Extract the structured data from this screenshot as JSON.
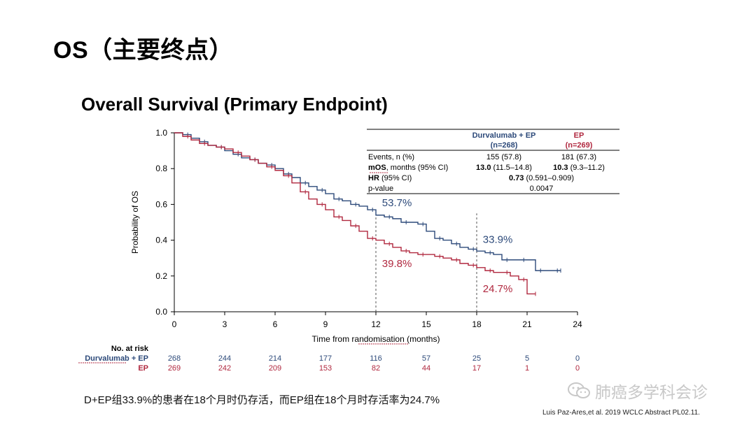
{
  "slide_title": "OS（主要终点）",
  "footnote_cn": "D+EP组33.9%的患者在18个月时仍存活，而EP组在18个月时存活率为24.7%",
  "citation": "Luis Paz-Ares,et al. 2019 WCLC Abstract PL02.11.",
  "watermark": "肺癌多学科会诊",
  "colors": {
    "durva": "#2d4a7a",
    "ep": "#b0283f",
    "axis": "#000000",
    "grid_dash": "#555555",
    "watermark": "#c8c8c8"
  },
  "chart_data": {
    "type": "line",
    "title": "Overall Survival (Primary Endpoint)",
    "xlabel": "Time from randomisation (months)",
    "ylabel": "Probability of OS",
    "xlim": [
      0,
      24
    ],
    "ylim": [
      0,
      1
    ],
    "xticks": [
      0,
      3,
      6,
      9,
      12,
      15,
      18,
      21,
      24
    ],
    "yticks": [
      "0.0",
      "0.2",
      "0.4",
      "0.6",
      "0.8",
      "1.0"
    ],
    "series": [
      {
        "name": "Durvalumab + EP",
        "color": "#2d4a7a",
        "x": [
          0,
          0.5,
          1,
          1.5,
          2,
          2.5,
          3,
          3.5,
          4,
          4.5,
          5,
          5.5,
          6,
          6.5,
          7,
          7.5,
          8,
          8.5,
          9,
          9.5,
          10,
          10.5,
          11,
          11.5,
          12,
          12.5,
          13,
          13.5,
          14,
          14.5,
          15,
          15.5,
          16,
          16.5,
          17,
          17.5,
          18,
          18.5,
          19,
          19.5,
          20,
          20.5,
          21,
          21.5,
          22,
          22.5,
          23
        ],
        "y": [
          1.0,
          0.99,
          0.97,
          0.95,
          0.93,
          0.92,
          0.9,
          0.88,
          0.86,
          0.85,
          0.83,
          0.82,
          0.8,
          0.77,
          0.75,
          0.72,
          0.7,
          0.68,
          0.66,
          0.63,
          0.62,
          0.6,
          0.59,
          0.57,
          0.54,
          0.53,
          0.52,
          0.5,
          0.5,
          0.49,
          0.45,
          0.41,
          0.4,
          0.38,
          0.36,
          0.35,
          0.339,
          0.33,
          0.32,
          0.29,
          0.29,
          0.29,
          0.29,
          0.23,
          0.23,
          0.23,
          0.23
        ]
      },
      {
        "name": "EP",
        "color": "#b0283f",
        "x": [
          0,
          0.5,
          1,
          1.5,
          2,
          2.5,
          3,
          3.5,
          4,
          4.5,
          5,
          5.5,
          6,
          6.5,
          7,
          7.5,
          8,
          8.5,
          9,
          9.5,
          10,
          10.5,
          11,
          11.5,
          12,
          12.5,
          13,
          13.5,
          14,
          14.5,
          15,
          15.5,
          16,
          16.5,
          17,
          17.5,
          18,
          18.5,
          19,
          19.5,
          20,
          20.5,
          21,
          21.5
        ],
        "y": [
          1.0,
          0.98,
          0.96,
          0.94,
          0.93,
          0.92,
          0.91,
          0.89,
          0.87,
          0.85,
          0.83,
          0.81,
          0.79,
          0.76,
          0.72,
          0.67,
          0.63,
          0.6,
          0.57,
          0.53,
          0.51,
          0.48,
          0.45,
          0.41,
          0.4,
          0.38,
          0.36,
          0.34,
          0.33,
          0.32,
          0.32,
          0.31,
          0.3,
          0.29,
          0.27,
          0.26,
          0.247,
          0.23,
          0.22,
          0.22,
          0.2,
          0.18,
          0.1,
          0.1
        ]
      }
    ],
    "annotations": [
      {
        "text": "53.7%",
        "x": 12,
        "y": 0.537,
        "series": "Durvalumab + EP",
        "anchor_x": 12.2,
        "anchor_y": 0.59
      },
      {
        "text": "39.8%",
        "x": 12,
        "y": 0.398,
        "series": "EP",
        "anchor_x": 12.2,
        "anchor_y": 0.25
      },
      {
        "text": "33.9%",
        "x": 18,
        "y": 0.339,
        "series": "Durvalumab + EP",
        "anchor_x": 18.2,
        "anchor_y": 0.385
      },
      {
        "text": "24.7%",
        "x": 18,
        "y": 0.247,
        "series": "EP",
        "anchor_x": 18.2,
        "anchor_y": 0.11
      }
    ],
    "reference_lines_x": [
      12,
      18
    ],
    "stats_table": {
      "headers": [
        "",
        "Durvalumab + EP\n(n=268)",
        "EP\n(n=269)"
      ],
      "rows": [
        {
          "label": "Events, n (%)",
          "durva": "155 (57.8)",
          "ep": "181 (67.3)"
        },
        {
          "label_bold": "mOS",
          "label_rest": ", months (95% CI)",
          "durva_bold": "13.0",
          "durva_rest": " (11.5–14.8)",
          "ep_bold": "10.3",
          "ep_rest": " (9.3–11.2)"
        },
        {
          "label_bold": "HR",
          "label_rest": " (95% CI)",
          "span_bold": "0.73",
          "span_rest": " (0.591–0.909)"
        },
        {
          "label": "p-value",
          "span": "0.0047"
        }
      ]
    },
    "at_risk": {
      "title": "No. at risk",
      "times": [
        0,
        3,
        6,
        9,
        12,
        15,
        18,
        21,
        24
      ],
      "rows": [
        {
          "label": "Durvalumab + EP",
          "color": "#2d4a7a",
          "values": [
            "268",
            "244",
            "214",
            "177",
            "116",
            "57",
            "25",
            "5",
            "0"
          ]
        },
        {
          "label": "EP",
          "color": "#b0283f",
          "values": [
            "269",
            "242",
            "209",
            "153",
            "82",
            "44",
            "17",
            "1",
            "0"
          ]
        }
      ]
    }
  }
}
